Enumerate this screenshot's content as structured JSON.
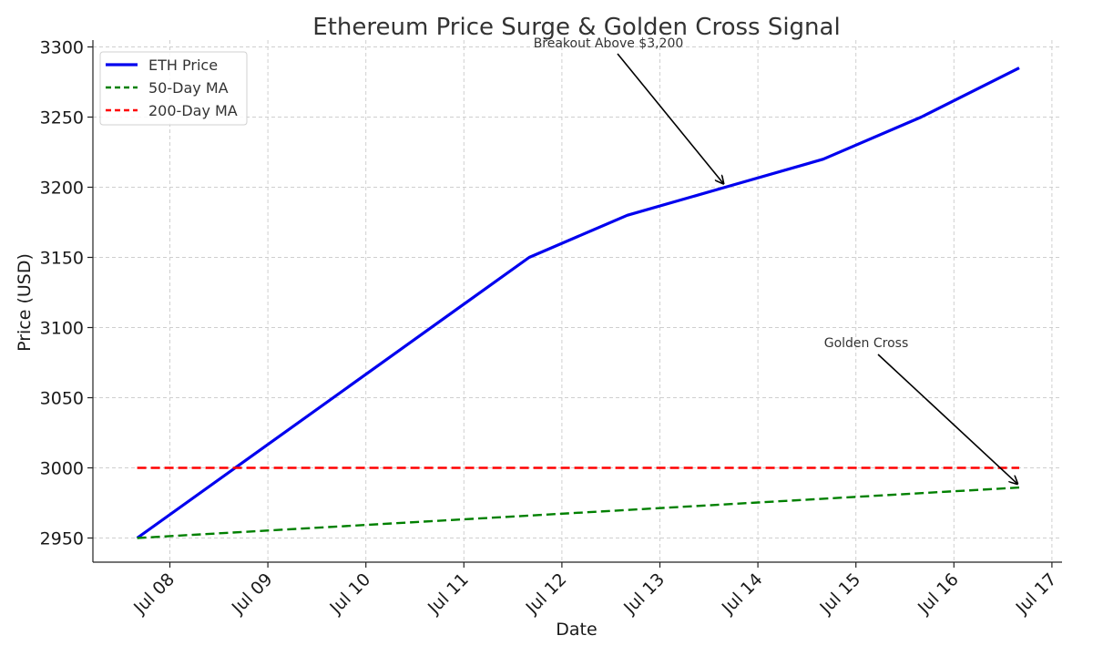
{
  "chart_data": {
    "type": "line",
    "title": "Ethereum Price Surge & Golden Cross Signal",
    "xlabel": "Date",
    "ylabel": "Price (USD)",
    "x": [
      "Jul 08",
      "Jul 09",
      "Jul 10",
      "Jul 11",
      "Jul 12",
      "Jul 13",
      "Jul 14",
      "Jul 15",
      "Jul 16",
      "Jul 17"
    ],
    "x_tick_labels": [
      "Jul 08",
      "Jul 09",
      "Jul 10",
      "Jul 11",
      "Jul 12",
      "Jul 13",
      "Jul 14",
      "Jul 15",
      "Jul 16",
      "Jul 17"
    ],
    "y_ticks": [
      2950,
      3000,
      3050,
      3100,
      3150,
      3200,
      3250,
      3300
    ],
    "ylim": [
      2935,
      3300
    ],
    "grid": true,
    "legend_position": "top-left",
    "series": [
      {
        "name": "ETH Price",
        "style": "solid",
        "color": "#0000ee",
        "x": [
          "Jul 07 16:00",
          "Jul 11 16:00",
          "Jul 12 16:00",
          "Jul 13 16:00",
          "Jul 14 16:00",
          "Jul 15 16:00",
          "Jul 16 16:00"
        ],
        "values": [
          2950,
          3150,
          3180,
          3200,
          3220,
          3250,
          3285
        ]
      },
      {
        "name": "50-Day MA",
        "style": "dashed",
        "color": "#008000",
        "x": [
          "Jul 07 16:00",
          "Jul 16 16:00"
        ],
        "values": [
          2950,
          2986
        ]
      },
      {
        "name": "200-Day MA",
        "style": "dashed",
        "color": "#ff0000",
        "x": [
          "Jul 07 16:00",
          "Jul 16 16:00"
        ],
        "values": [
          3000,
          3000
        ]
      }
    ],
    "annotations": [
      {
        "text": "Breakout Above $3,200",
        "x": "Jul 13 16:00",
        "y": 3200
      },
      {
        "text": "Golden Cross",
        "x": "Jul 16 16:00",
        "y": 2986
      }
    ]
  }
}
